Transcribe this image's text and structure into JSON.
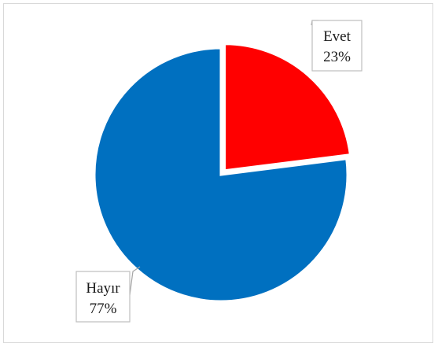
{
  "chart_data": {
    "type": "pie",
    "title": "",
    "categories": [
      "Evet",
      "Hayır"
    ],
    "values": [
      23,
      77
    ],
    "value_format": "percent",
    "exploded": true,
    "start_angle_deg": 0,
    "colors": {
      "Evet": "#ff0000",
      "Hayır": "#0070c0"
    },
    "labels": [
      {
        "category": "Evet",
        "name_text": "Evet",
        "value_text": "23%"
      },
      {
        "category": "Hayır",
        "name_text": "Hayır",
        "value_text": "77%"
      }
    ],
    "legend": "none"
  }
}
